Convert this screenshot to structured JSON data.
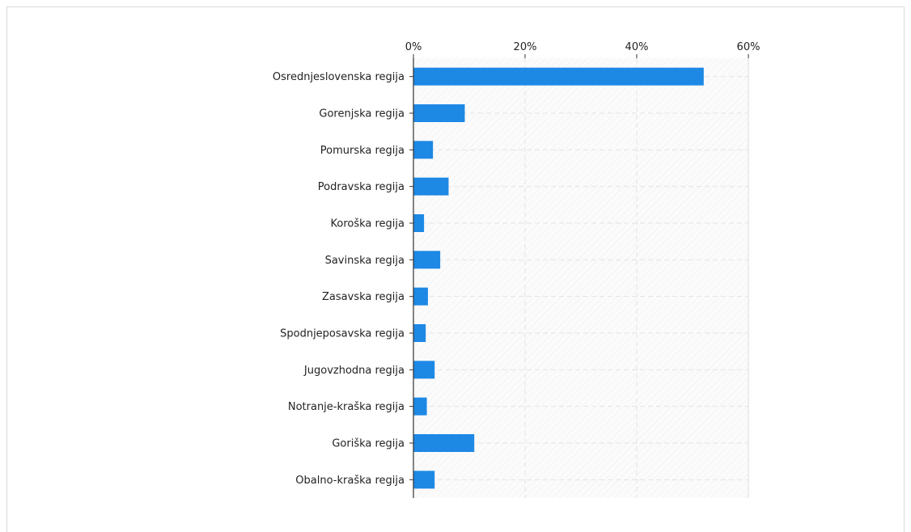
{
  "chart_data": {
    "type": "bar",
    "orientation": "horizontal",
    "categories": [
      "Osrednjeslovenska regija",
      "Gorenjska regija",
      "Pomurska regija",
      "Podravska regija",
      "Koroška regija",
      "Savinska regija",
      "Zasavska regija",
      "Spodnjeposavska regija",
      "Jugovzhodna regija",
      "Notranje-kraška regija",
      "Goriška regija",
      "Obalno-kraška regija"
    ],
    "values": [
      52,
      9.2,
      3.5,
      6.3,
      1.9,
      4.8,
      2.6,
      2.2,
      3.8,
      2.4,
      10.9,
      3.8
    ],
    "x_ticks": [
      "0%",
      "20%",
      "40%",
      "60%"
    ],
    "xlim": [
      0,
      60
    ],
    "x_unit": "%",
    "grid": true,
    "bar_color": "#1e88e5"
  }
}
